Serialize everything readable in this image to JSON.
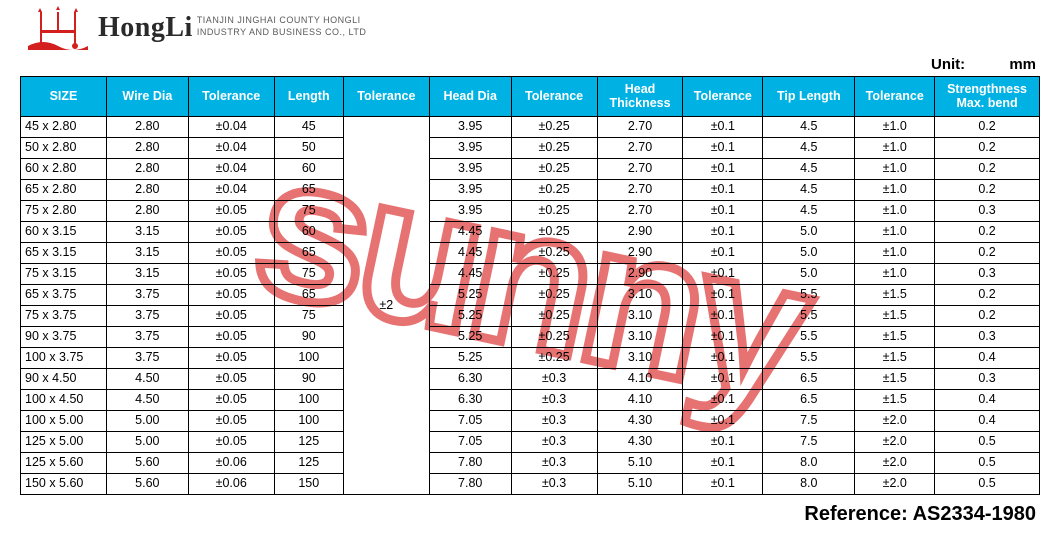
{
  "header": {
    "brand": "HongLi",
    "subtitle_line1": "TIANJIN JINGHAI COUNTY HONGLI",
    "subtitle_line2": "INDUSTRY AND BUSINESS CO., LTD",
    "logo_color": "#d41f1f"
  },
  "unit": {
    "label": "Unit:",
    "value": "mm"
  },
  "watermark": {
    "text": "sunny",
    "stroke_color": "rgba(215,20,20,0.6)"
  },
  "reference": {
    "text": "Reference: AS2334-1980"
  },
  "table": {
    "header_bg": "#00b2e3",
    "header_fg": "#ffffff",
    "border_color": "#000000",
    "cell_fontsize": 12.5,
    "columns": [
      "SIZE",
      "Wire Dia",
      "Tolerance",
      "Length",
      "Tolerance",
      "Head Dia",
      "Tolerance",
      "Head Thickness",
      "Tolerance",
      "Tip Length",
      "Tolerance",
      "Strengthness Max. bend"
    ],
    "length_tolerance_merged": "±2",
    "rows": [
      {
        "size": "45 x 2.80",
        "wire": "2.80",
        "tol1": "±0.04",
        "len": "45",
        "head": "3.95",
        "tol3": "±0.25",
        "thk": "2.70",
        "tol4": "±0.1",
        "tip": "4.5",
        "tol5": "±1.0",
        "str": "0.2"
      },
      {
        "size": "50 x 2.80",
        "wire": "2.80",
        "tol1": "±0.04",
        "len": "50",
        "head": "3.95",
        "tol3": "±0.25",
        "thk": "2.70",
        "tol4": "±0.1",
        "tip": "4.5",
        "tol5": "±1.0",
        "str": "0.2"
      },
      {
        "size": "60 x 2.80",
        "wire": "2.80",
        "tol1": "±0.04",
        "len": "60",
        "head": "3.95",
        "tol3": "±0.25",
        "thk": "2.70",
        "tol4": "±0.1",
        "tip": "4.5",
        "tol5": "±1.0",
        "str": "0.2"
      },
      {
        "size": "65 x 2.80",
        "wire": "2.80",
        "tol1": "±0.04",
        "len": "65",
        "head": "3.95",
        "tol3": "±0.25",
        "thk": "2.70",
        "tol4": "±0.1",
        "tip": "4.5",
        "tol5": "±1.0",
        "str": "0.2"
      },
      {
        "size": "75 x 2.80",
        "wire": "2.80",
        "tol1": "±0.05",
        "len": "75",
        "head": "3.95",
        "tol3": "±0.25",
        "thk": "2.70",
        "tol4": "±0.1",
        "tip": "4.5",
        "tol5": "±1.0",
        "str": "0.3"
      },
      {
        "size": "60 x 3.15",
        "wire": "3.15",
        "tol1": "±0.05",
        "len": "60",
        "head": "4.45",
        "tol3": "±0.25",
        "thk": "2.90",
        "tol4": "±0.1",
        "tip": "5.0",
        "tol5": "±1.0",
        "str": "0.2"
      },
      {
        "size": "65 x 3.15",
        "wire": "3.15",
        "tol1": "±0.05",
        "len": "65",
        "head": "4.45",
        "tol3": "±0.25",
        "thk": "2.90",
        "tol4": "±0.1",
        "tip": "5.0",
        "tol5": "±1.0",
        "str": "0.2"
      },
      {
        "size": "75 x 3.15",
        "wire": "3.15",
        "tol1": "±0.05",
        "len": "75",
        "head": "4.45",
        "tol3": "±0.25",
        "thk": "2.90",
        "tol4": "±0.1",
        "tip": "5.0",
        "tol5": "±1.0",
        "str": "0.3"
      },
      {
        "size": "65 x 3.75",
        "wire": "3.75",
        "tol1": "±0.05",
        "len": "65",
        "head": "5.25",
        "tol3": "±0.25",
        "thk": "3.10",
        "tol4": "±0.1",
        "tip": "5.5",
        "tol5": "±1.5",
        "str": "0.2"
      },
      {
        "size": "75 x 3.75",
        "wire": "3.75",
        "tol1": "±0.05",
        "len": "75",
        "head": "5.25",
        "tol3": "±0.25",
        "thk": "3.10",
        "tol4": "±0.1",
        "tip": "5.5",
        "tol5": "±1.5",
        "str": "0.2"
      },
      {
        "size": "90 x 3.75",
        "wire": "3.75",
        "tol1": "±0.05",
        "len": "90",
        "head": "5.25",
        "tol3": "±0.25",
        "thk": "3.10",
        "tol4": "±0.1",
        "tip": "5.5",
        "tol5": "±1.5",
        "str": "0.3"
      },
      {
        "size": "100 x 3.75",
        "wire": "3.75",
        "tol1": "±0.05",
        "len": "100",
        "head": "5.25",
        "tol3": "±0.25",
        "thk": "3.10",
        "tol4": "±0.1",
        "tip": "5.5",
        "tol5": "±1.5",
        "str": "0.4"
      },
      {
        "size": "90 x 4.50",
        "wire": "4.50",
        "tol1": "±0.05",
        "len": "90",
        "head": "6.30",
        "tol3": "±0.3",
        "thk": "4.10",
        "tol4": "±0.1",
        "tip": "6.5",
        "tol5": "±1.5",
        "str": "0.3"
      },
      {
        "size": "100 x 4.50",
        "wire": "4.50",
        "tol1": "±0.05",
        "len": "100",
        "head": "6.30",
        "tol3": "±0.3",
        "thk": "4.10",
        "tol4": "±0.1",
        "tip": "6.5",
        "tol5": "±1.5",
        "str": "0.4"
      },
      {
        "size": "100 x 5.00",
        "wire": "5.00",
        "tol1": "±0.05",
        "len": "100",
        "head": "7.05",
        "tol3": "±0.3",
        "thk": "4.30",
        "tol4": "±0.1",
        "tip": "7.5",
        "tol5": "±2.0",
        "str": "0.4"
      },
      {
        "size": "125 x 5.00",
        "wire": "5.00",
        "tol1": "±0.05",
        "len": "125",
        "head": "7.05",
        "tol3": "±0.3",
        "thk": "4.30",
        "tol4": "±0.1",
        "tip": "7.5",
        "tol5": "±2.0",
        "str": "0.5"
      },
      {
        "size": "125 x 5.60",
        "wire": "5.60",
        "tol1": "±0.06",
        "len": "125",
        "head": "7.80",
        "tol3": "±0.3",
        "thk": "5.10",
        "tol4": "±0.1",
        "tip": "8.0",
        "tol5": "±2.0",
        "str": "0.5"
      },
      {
        "size": "150 x 5.60",
        "wire": "5.60",
        "tol1": "±0.06",
        "len": "150",
        "head": "7.80",
        "tol3": "±0.3",
        "thk": "5.10",
        "tol4": "±0.1",
        "tip": "8.0",
        "tol5": "±2.0",
        "str": "0.5"
      }
    ]
  }
}
